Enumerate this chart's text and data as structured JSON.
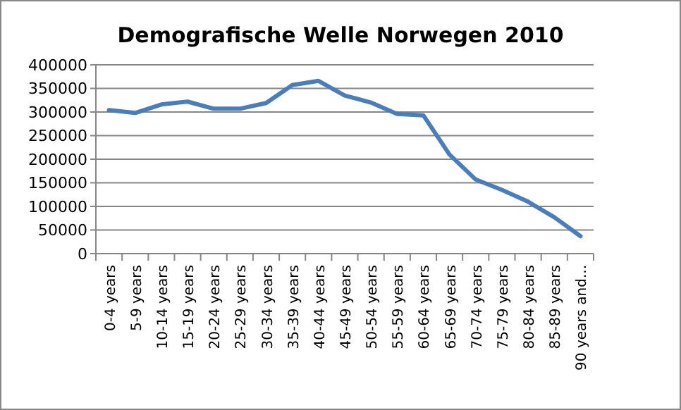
{
  "chart_data": {
    "type": "line",
    "title": "Demografische Welle Norwegen 2010",
    "categories": [
      "0-4 years",
      "5-9 years",
      "10-14 years",
      "15-19 years",
      "20-24 years",
      "25-29 years",
      "30-34 years",
      "35-39 years",
      "40-44 years",
      "45-49 years",
      "50-54 years",
      "55-59 years",
      "60-64 years",
      "65-69 years",
      "70-74 years",
      "75-79 years",
      "80-84 years",
      "85-89 years",
      "90 years and..."
    ],
    "series": [
      {
        "color": "#4a7ebb",
        "values": [
          304000,
          298000,
          316000,
          322000,
          307000,
          307000,
          319000,
          357000,
          366000,
          335000,
          320000,
          296000,
          293000,
          210000,
          157000,
          135000,
          110000,
          77000,
          37000
        ]
      }
    ],
    "ylim": [
      0,
      400000
    ],
    "yticks": [
      0,
      50000,
      100000,
      150000,
      200000,
      250000,
      300000,
      350000,
      400000
    ],
    "grid": "y",
    "marker": "none",
    "line_style": "solid"
  }
}
